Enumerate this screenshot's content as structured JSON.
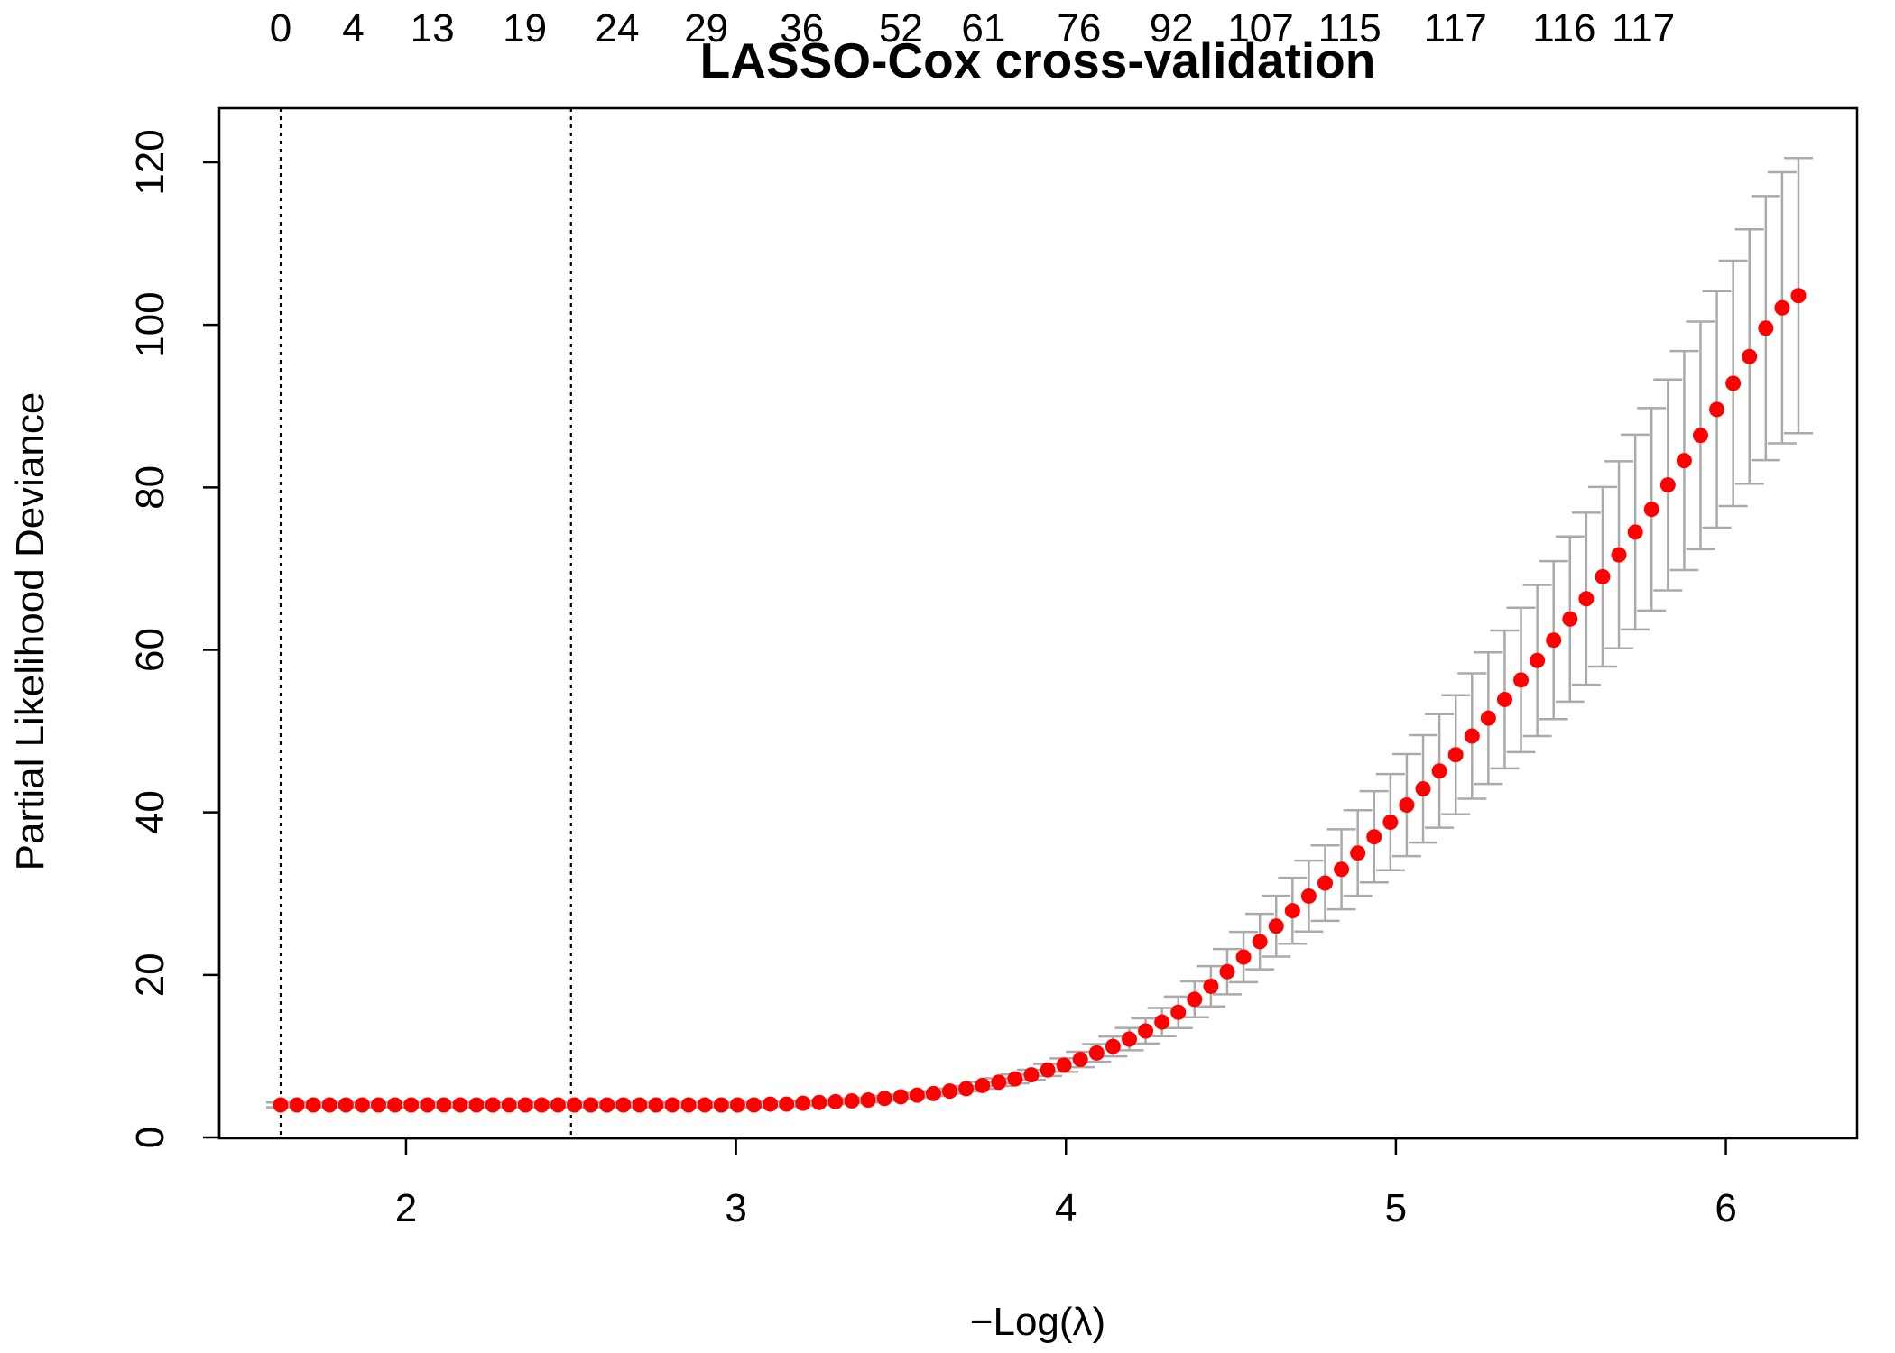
{
  "chart_data": {
    "type": "scatter",
    "title": "LASSO-Cox cross-validation",
    "xlabel": "−Log(λ)",
    "ylabel": "Partial Likelihood Deviance",
    "xlim": [
      1.62,
      6.22
    ],
    "ylim": [
      0,
      120
    ],
    "x_ticks": [
      "2",
      "3",
      "4",
      "5",
      "6"
    ],
    "y_ticks": [
      "0",
      "20",
      "40",
      "60",
      "80",
      "100",
      "120"
    ],
    "top_axis": {
      "x": [
        1.62,
        1.84,
        2.08,
        2.36,
        2.64,
        2.91,
        3.2,
        3.5,
        3.75,
        4.04,
        4.32,
        4.59,
        4.86,
        5.18,
        5.51,
        5.75
      ],
      "labels": [
        "0",
        "4",
        "13",
        "19",
        "24",
        "29",
        "36",
        "52",
        "61",
        "76",
        "92",
        "107",
        "115",
        "117",
        "116",
        "117"
      ]
    },
    "reference_lines": {
      "style": "dotted",
      "x": [
        1.62,
        2.5
      ]
    },
    "series": [
      {
        "color": "#ff0000",
        "error_bar_color": "#aaaaaa",
        "first_x": 1.62,
        "last_x": 6.22,
        "points": 101,
        "y": [
          4.0,
          4.0,
          4.0,
          4.0,
          4.0,
          4.0,
          4.0,
          4.0,
          4.0,
          4.0,
          4.0,
          4.0,
          4.0,
          4.0,
          4.0,
          4.0,
          4.0,
          4.0,
          4.0,
          4.0,
          4.0,
          4.0,
          4.0,
          4.0,
          4.0,
          4.0,
          4.0,
          4.0,
          4.0,
          4.0,
          4.1,
          4.1,
          4.2,
          4.3,
          4.4,
          4.5,
          4.6,
          4.8,
          5.0,
          5.2,
          5.4,
          5.7,
          6.0,
          6.4,
          6.8,
          7.2,
          7.7,
          8.3,
          8.9,
          9.6,
          10.4,
          11.2,
          12.1,
          13.1,
          14.2,
          15.4,
          17.0,
          18.6,
          20.4,
          22.2,
          24.1,
          26.0,
          27.9,
          29.7,
          31.3,
          33.0,
          35.0,
          37.0,
          38.8,
          40.9,
          42.9,
          45.1,
          47.1,
          49.4,
          51.6,
          53.9,
          56.3,
          58.7,
          61.2,
          63.8,
          66.3,
          69.0,
          71.7,
          74.5,
          77.3,
          80.3,
          83.3,
          86.4,
          89.6,
          92.8,
          96.1,
          99.6,
          102.1,
          103.6
        ],
        "note_y_index_start": 7
      }
    ]
  }
}
